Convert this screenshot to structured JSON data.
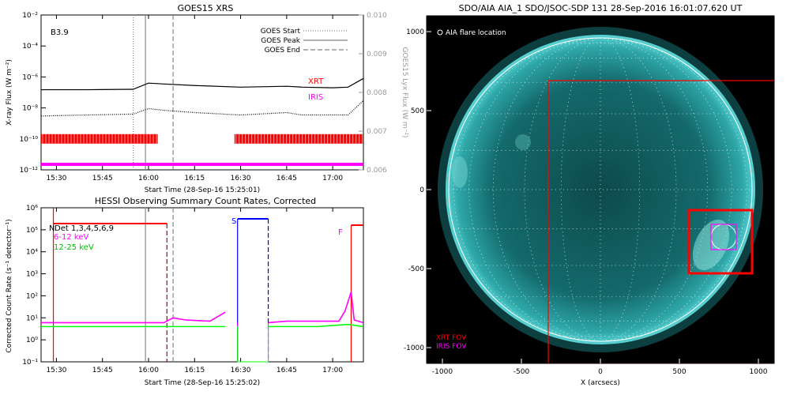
{
  "goes_panel": {
    "title": "GOES15 XRS",
    "flare_class": "B3.9",
    "ylabel_left": "X-ray Flux (W m⁻²)",
    "ylabel_right": "GOES15 Lyx Flux (W m⁻²)",
    "xlabel": "Start Time (28-Sep-16 15:25:01)",
    "legend": [
      {
        "label": "GOES Start",
        "style": "dotted"
      },
      {
        "label": "GOES Peak",
        "style": "solid"
      },
      {
        "label": "GOES End",
        "style": "dashed"
      }
    ],
    "instrument_labels": [
      {
        "text": "XRT",
        "color": "#ff0000"
      },
      {
        "text": "IRIS",
        "color": "#ff00ff"
      }
    ]
  },
  "hessi_panel": {
    "title": "HESSI Observing Summary Count Rates, Corrected",
    "ylabel": "Corrected Count Rate (s⁻¹ detector⁻¹)",
    "xlabel": "Start Time (28-Sep-16 15:25:02)",
    "detector_label": "Det 1,3,4,5,6,9",
    "night_marker": "N",
    "saa_marker": "S",
    "flare_marker": "F",
    "series_labels": [
      {
        "text": "6-12 keV",
        "color": "#ff00ff"
      },
      {
        "text": "12-25 keV",
        "color": "#00ff00"
      }
    ]
  },
  "aia_panel": {
    "title": "SDO/AIA AIA_1 SDO/JSOC-SDP 131 28-Sep-2016 16:01:07.620 UT",
    "legend_flare": "AIA flare location",
    "xlabel": "X (arcsecs)",
    "fov_labels": [
      {
        "text": "XRT FOV",
        "color": "#ff0000"
      },
      {
        "text": "IRIS FOV",
        "color": "#ff00ff"
      }
    ],
    "x_ticks": [
      "-1000",
      "-500",
      "0",
      "500",
      "1000"
    ],
    "y_ticks": [
      "1000",
      "500",
      "0",
      "-500",
      "-1000"
    ]
  },
  "colors": {
    "xrt": "#ff0000",
    "iris": "#ff00ff",
    "green": "#00ff00",
    "blue": "#0000ff",
    "sun": "#1a8a8a"
  },
  "chart_data": [
    {
      "type": "line",
      "name": "goes_xrs",
      "title": "GOES15 XRS",
      "xlabel": "Start Time (28-Sep-16 15:25:01)",
      "ylabel": "X-ray Flux (W m⁻²)",
      "y2label": "GOES15 Lyx Flux (W m⁻²)",
      "y_scale": "log",
      "ylim": [
        1e-12,
        0.01
      ],
      "y2lim": [
        0.006,
        0.01
      ],
      "xlim": [
        "15:25",
        "17:10"
      ],
      "x_ticks": [
        "15:30",
        "15:45",
        "16:00",
        "16:15",
        "16:30",
        "16:45",
        "17:00"
      ],
      "y_ticks": [
        "10⁻¹²",
        "10⁻¹⁰",
        "10⁻⁸",
        "10⁻⁶",
        "10⁻⁴",
        "10⁻²"
      ],
      "y2_ticks": [
        "0.006",
        "0.007",
        "0.008",
        "0.009",
        "0.010"
      ],
      "series": [
        {
          "style": "solid",
          "x": [
            "15:25",
            "15:40",
            "15:55",
            "16:00",
            "16:05",
            "16:15",
            "16:30",
            "16:45",
            "16:50",
            "17:00",
            "17:05",
            "17:10"
          ],
          "values": [
            1.5e-07,
            1.5e-07,
            1.6e-07,
            4e-07,
            3.5e-07,
            2.8e-07,
            2.2e-07,
            2.5e-07,
            2.2e-07,
            2e-07,
            2.2e-07,
            8e-07
          ]
        },
        {
          "style": "dotted",
          "x": [
            "15:25",
            "15:40",
            "15:55",
            "16:00",
            "16:05",
            "16:15",
            "16:30",
            "16:45",
            "16:50",
            "17:00",
            "17:05",
            "17:10"
          ],
          "values": [
            3e-09,
            3.5e-09,
            4e-09,
            9e-09,
            7e-09,
            5e-09,
            3.5e-09,
            5e-09,
            3.5e-09,
            3.5e-09,
            3.5e-09,
            3e-08
          ]
        }
      ],
      "markers": {
        "goes_start": "15:55",
        "goes_peak": "15:59",
        "goes_end": "16:08"
      },
      "xrt_coverage": [
        [
          "15:25",
          "16:03"
        ],
        [
          "16:28",
          "17:10"
        ]
      ],
      "iris_coverage": [
        [
          "15:25",
          "17:10"
        ]
      ]
    },
    {
      "type": "line",
      "name": "hessi_count_rates",
      "title": "HESSI Observing Summary Count Rates, Corrected",
      "xlabel": "Start Time (28-Sep-16 15:25:02)",
      "ylabel": "Corrected Count Rate (s⁻¹ detector⁻¹)",
      "y_scale": "log",
      "ylim": [
        0.1,
        1000000.0
      ],
      "xlim": [
        "15:25",
        "17:10"
      ],
      "x_ticks": [
        "15:30",
        "15:45",
        "16:00",
        "16:15",
        "16:30",
        "16:45",
        "17:00"
      ],
      "y_ticks": [
        "10⁻¹",
        "10⁰",
        "10¹",
        "10²",
        "10³",
        "10⁴",
        "10⁵",
        "10⁶"
      ],
      "series": [
        {
          "name": "6-12 keV",
          "color": "#ff00ff",
          "x": [
            "15:25",
            "15:35",
            "15:45",
            "15:55",
            "16:05",
            "16:08",
            "16:12",
            "16:20",
            "16:25",
            "16:30",
            "16:39",
            "16:45",
            "16:55",
            "17:02",
            "17:04",
            "17:06",
            "17:07",
            "17:10"
          ],
          "values": [
            6,
            6,
            6,
            6,
            6,
            10,
            8,
            7,
            18,
            6,
            6,
            7,
            7,
            7,
            20,
            150,
            8,
            6
          ]
        },
        {
          "name": "12-25 keV",
          "color": "#00ff00",
          "x": [
            "15:25",
            "15:35",
            "15:45",
            "15:55",
            "16:05",
            "16:15",
            "16:25",
            "16:30",
            "16:39",
            "16:45",
            "16:55",
            "17:05",
            "17:10"
          ],
          "values": [
            4,
            4,
            4,
            4,
            4,
            4,
            4,
            4,
            4,
            4,
            4,
            5,
            4
          ]
        }
      ],
      "markers": {
        "goes_peak": "15:59",
        "goes_end": "16:08"
      },
      "night_interval": [
        "15:29",
        "16:06"
      ],
      "saa_interval": [
        "16:29",
        "16:39"
      ],
      "flare_interval": [
        "17:06",
        "17:10"
      ]
    },
    {
      "type": "scatter",
      "name": "aia_map",
      "title": "SDO/AIA AIA_1 SDO/JSOC-SDP 131 28-Sep-2016 16:01:07.620 UT",
      "xlabel": "X (arcsecs)",
      "xlim": [
        -1100,
        1100
      ],
      "ylim": [
        -1100,
        1100
      ],
      "solar_radius": 960,
      "flare_location": [
        780,
        -300
      ],
      "flare_circle_radius": 80,
      "xrt_fov": [
        [
          -330,
          -1100
        ],
        [
          1100,
          690
        ]
      ],
      "xrt_fov_small": [
        [
          560,
          -530
        ],
        [
          960,
          -130
        ]
      ],
      "iris_fov": [
        [
          700,
          -380
        ],
        [
          860,
          -220
        ]
      ]
    }
  ]
}
